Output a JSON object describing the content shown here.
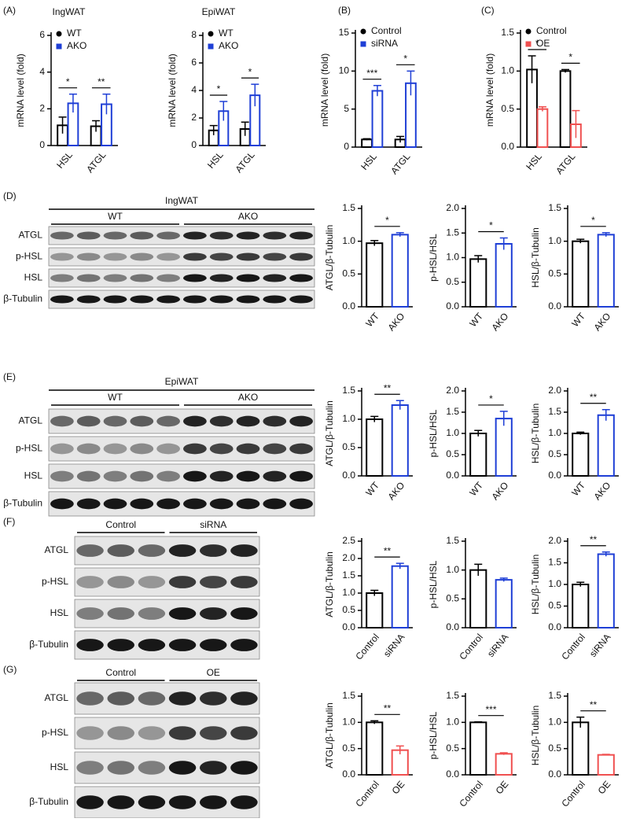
{
  "chart_data": [
    {
      "type": "bar",
      "panel": "(A)",
      "title": "IngWAT",
      "y_label": "mRNA level (fold)",
      "categories": [
        "HSL",
        "ATGL"
      ],
      "series": [
        {
          "name": "WT",
          "color": "#000000",
          "values": [
            1.1,
            1.05
          ],
          "errors": [
            0.45,
            0.3
          ]
        },
        {
          "name": "AKO",
          "color": "#1f3fd6",
          "values": [
            2.3,
            2.25
          ],
          "errors": [
            0.5,
            0.55
          ]
        }
      ],
      "annotations": [
        "*",
        "**"
      ],
      "ylim": [
        0,
        6
      ],
      "yticks": [
        0,
        2,
        4,
        6
      ]
    },
    {
      "type": "bar",
      "title": "EpiWAT",
      "y_label": "mRNA level (fold)",
      "categories": [
        "HSL",
        "ATGL"
      ],
      "series": [
        {
          "name": "WT",
          "color": "#000000",
          "values": [
            1.1,
            1.2
          ],
          "errors": [
            0.35,
            0.5
          ]
        },
        {
          "name": "AKO",
          "color": "#1f3fd6",
          "values": [
            2.5,
            3.65
          ],
          "errors": [
            0.7,
            0.8
          ]
        }
      ],
      "annotations": [
        "*",
        "*"
      ],
      "ylim": [
        0,
        8
      ],
      "yticks": [
        0,
        2,
        4,
        6,
        8
      ]
    },
    {
      "type": "bar",
      "panel": "(B)",
      "y_label": "mRNA level (fold)",
      "categories": [
        "HSL",
        "ATGL"
      ],
      "series": [
        {
          "name": "Control",
          "color": "#000000",
          "values": [
            1,
            1
          ],
          "errors": [
            0.1,
            0.4
          ]
        },
        {
          "name": "siRNA",
          "color": "#1f3fd6",
          "values": [
            7.4,
            8.4
          ],
          "errors": [
            0.7,
            1.6
          ]
        }
      ],
      "annotations": [
        "***",
        "*"
      ],
      "ylim": [
        0,
        15
      ],
      "yticks": [
        0,
        5,
        10,
        15
      ]
    },
    {
      "type": "bar",
      "panel": "(C)",
      "y_label": "mRNA level (fold)",
      "categories": [
        "HSL",
        "ATGL"
      ],
      "series": [
        {
          "name": "Control",
          "color": "#000000",
          "values": [
            1.02,
            1.0
          ],
          "errors": [
            0.18,
            0.02
          ]
        },
        {
          "name": "OE",
          "color": "#f05050",
          "values": [
            0.5,
            0.3
          ],
          "errors": [
            0.03,
            0.18
          ]
        }
      ],
      "annotations": [
        "*",
        "*"
      ],
      "ylim": [
        0,
        1.5
      ],
      "yticks": [
        {
          "value": 0,
          "label": "0.0"
        },
        0.5,
        {
          "value": 1,
          "label": "1.0"
        },
        1.5
      ]
    },
    {
      "type": "bar",
      "y_label": "ATGL/β-Tubulin",
      "categories": [
        "WT",
        "AKO"
      ],
      "values": [
        0.97,
        1.1
      ],
      "errors": [
        0.04,
        0.03
      ],
      "colors": [
        "#000000",
        "#1f3fd6"
      ],
      "annotation": "*",
      "ylim": [
        0,
        1.5
      ],
      "yticks": [
        {
          "value": 0,
          "label": "0.0"
        },
        0.5,
        {
          "value": 1,
          "label": "1.0"
        },
        1.5
      ]
    },
    {
      "type": "bar",
      "y_label": "p-HSL/HSL",
      "categories": [
        "WT",
        "AKO"
      ],
      "values": [
        0.97,
        1.28
      ],
      "errors": [
        0.07,
        0.12
      ],
      "colors": [
        "#000000",
        "#1f3fd6"
      ],
      "annotation": "*",
      "ylim": [
        0,
        2
      ],
      "yticks": [
        {
          "value": 0,
          "label": "0.0"
        },
        0.5,
        {
          "value": 1,
          "label": "1.0"
        },
        1.5,
        {
          "value": 2,
          "label": "2.0"
        }
      ]
    },
    {
      "type": "bar",
      "y_label": "HSL/β-Tubulin",
      "categories": [
        "WT",
        "AKO"
      ],
      "values": [
        1.0,
        1.1
      ],
      "errors": [
        0.03,
        0.03
      ],
      "colors": [
        "#000000",
        "#1f3fd6"
      ],
      "annotation": "*",
      "ylim": [
        0,
        1.5
      ],
      "yticks": [
        {
          "value": 0,
          "label": "0.0"
        },
        0.5,
        {
          "value": 1,
          "label": "1.0"
        },
        1.5
      ]
    },
    {
      "type": "bar",
      "y_label": "ATGL/β-Tubulin",
      "categories": [
        "WT",
        "AKO"
      ],
      "values": [
        1.0,
        1.25
      ],
      "errors": [
        0.05,
        0.08
      ],
      "colors": [
        "#000000",
        "#1f3fd6"
      ],
      "annotation": "**",
      "ylim": [
        0,
        1.5
      ],
      "yticks": [
        {
          "value": 0,
          "label": "0.0"
        },
        0.5,
        {
          "value": 1,
          "label": "1.0"
        },
        1.5
      ]
    },
    {
      "type": "bar",
      "y_label": "p-HSL/HSL",
      "categories": [
        "WT",
        "AKO"
      ],
      "values": [
        1.0,
        1.35
      ],
      "errors": [
        0.07,
        0.17
      ],
      "colors": [
        "#000000",
        "#1f3fd6"
      ],
      "annotation": "*",
      "ylim": [
        0,
        2
      ],
      "yticks": [
        {
          "value": 0,
          "label": "0.0"
        },
        0.5,
        {
          "value": 1,
          "label": "1.0"
        },
        1.5,
        {
          "value": 2,
          "label": "2.0"
        }
      ]
    },
    {
      "type": "bar",
      "y_label": "HSL/β-Tubulin",
      "categories": [
        "WT",
        "AKO"
      ],
      "values": [
        1.0,
        1.43
      ],
      "errors": [
        0.03,
        0.13
      ],
      "colors": [
        "#000000",
        "#1f3fd6"
      ],
      "annotation": "**",
      "ylim": [
        0,
        2
      ],
      "yticks": [
        {
          "value": 0,
          "label": "0.0"
        },
        0.5,
        {
          "value": 1,
          "label": "1.0"
        },
        1.5,
        {
          "value": 2,
          "label": "2.0"
        }
      ]
    },
    {
      "type": "bar",
      "y_label": "ATGL/β-Tubulin",
      "categories": [
        "Control",
        "siRNA"
      ],
      "values": [
        1.0,
        1.78
      ],
      "errors": [
        0.08,
        0.08
      ],
      "colors": [
        "#000000",
        "#1f3fd6"
      ],
      "annotation": "**",
      "ylim": [
        0,
        2.5
      ],
      "yticks": [
        {
          "value": 0,
          "label": "0.0"
        },
        0.5,
        {
          "value": 1,
          "label": "1.0"
        },
        1.5,
        {
          "value": 2,
          "label": "2.0"
        },
        2.5
      ]
    },
    {
      "type": "bar",
      "y_label": "p-HSL/HSL",
      "categories": [
        "Control",
        "siRNA"
      ],
      "values": [
        1.0,
        0.83
      ],
      "errors": [
        0.1,
        0.03
      ],
      "colors": [
        "#000000",
        "#1f3fd6"
      ],
      "ylim": [
        0,
        1.5
      ],
      "yticks": [
        {
          "value": 0,
          "label": "0.0"
        },
        0.5,
        {
          "value": 1,
          "label": "1.0"
        },
        1.5
      ]
    },
    {
      "type": "bar",
      "y_label": "HSL/β-Tubulin",
      "categories": [
        "Control",
        "siRNA"
      ],
      "values": [
        1.0,
        1.7
      ],
      "errors": [
        0.05,
        0.05
      ],
      "colors": [
        "#000000",
        "#1f3fd6"
      ],
      "annotation": "**",
      "ylim": [
        0,
        2
      ],
      "yticks": [
        {
          "value": 0,
          "label": "0.0"
        },
        0.5,
        {
          "value": 1,
          "label": "1.0"
        },
        1.5,
        {
          "value": 2,
          "label": "2.0"
        }
      ]
    },
    {
      "type": "bar",
      "y_label": "ATGL/β-Tubulin",
      "categories": [
        "Control",
        "OE"
      ],
      "values": [
        1.0,
        0.47
      ],
      "errors": [
        0.03,
        0.08
      ],
      "colors": [
        "#000000",
        "#f05050"
      ],
      "annotation": "**",
      "ylim": [
        0,
        1.5
      ],
      "yticks": [
        {
          "value": 0,
          "label": "0.0"
        },
        0.5,
        {
          "value": 1,
          "label": "1.0"
        },
        1.5
      ]
    },
    {
      "type": "bar",
      "y_label": "p-HSL/HSL",
      "categories": [
        "Control",
        "OE"
      ],
      "values": [
        1.0,
        0.4
      ],
      "errors": [
        0.01,
        0.02
      ],
      "colors": [
        "#000000",
        "#f05050"
      ],
      "annotation": "***",
      "ylim": [
        0,
        1.5
      ],
      "yticks": [
        {
          "value": 0,
          "label": "0.0"
        },
        0.5,
        {
          "value": 1,
          "label": "1.0"
        },
        1.5
      ]
    },
    {
      "type": "bar",
      "y_label": "HSL/β-Tubulin",
      "categories": [
        "Control",
        "OE"
      ],
      "values": [
        1.0,
        0.38
      ],
      "errors": [
        0.1,
        0.01
      ],
      "colors": [
        "#000000",
        "#f05050"
      ],
      "annotation": "**",
      "ylim": [
        0,
        1.5
      ],
      "yticks": [
        {
          "value": 0,
          "label": "0.0"
        },
        0.5,
        {
          "value": 1,
          "label": "1.0"
        },
        1.5
      ]
    }
  ],
  "blots": [
    {
      "panel": "(D)",
      "title": "IngWAT",
      "groups": [
        "WT",
        "AKO"
      ],
      "rows": [
        "ATGL",
        "p-HSL",
        "HSL",
        "β-Tubulin"
      ]
    },
    {
      "panel": "(E)",
      "title": "EpiWAT",
      "groups": [
        "WT",
        "AKO"
      ],
      "rows": [
        "ATGL",
        "p-HSL",
        "HSL",
        "β-Tubulin"
      ]
    },
    {
      "panel": "(F)",
      "groups": [
        "Control",
        "siRNA"
      ],
      "rows": [
        "ATGL",
        "p-HSL",
        "HSL",
        "β-Tubulin"
      ]
    },
    {
      "panel": "(G)",
      "groups": [
        "Control",
        "OE"
      ],
      "rows": [
        "ATGL",
        "p-HSL",
        "HSL",
        "β-Tubulin"
      ]
    }
  ]
}
